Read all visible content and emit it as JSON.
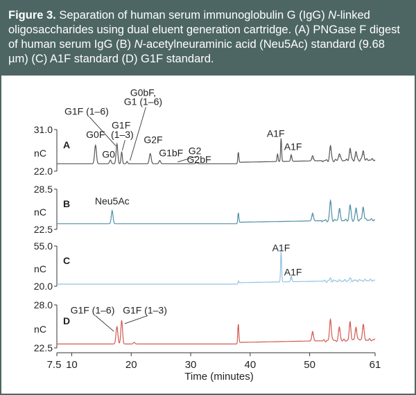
{
  "caption": {
    "label": "Figure 3.",
    "part1": "Separation of human serum immunoglobulin G (IgG) ",
    "italic1": "N",
    "part2": "-linked oligosaccharides using dual eluent generation cartridge. (A) PNGase F digest of human serum IgG (B) ",
    "italic2": "N",
    "part3": "-acetylneuraminic acid (Neu5Ac) standard (9.68 µm) (C) A1F standard (D) G1F standard."
  },
  "chart_data": {
    "type": "line",
    "xlabel": "Time (minutes)",
    "xlim": [
      7.5,
      61
    ],
    "xticks": [
      7.5,
      10,
      20,
      30,
      40,
      50,
      61
    ],
    "xtick_labels": [
      "7.5",
      "10",
      "20",
      "30",
      "40",
      "50",
      "61"
    ],
    "ylabel": "nC",
    "panels": [
      {
        "id": "A",
        "label": "A",
        "ylim": [
          22.0,
          31.0
        ],
        "ytick_labels": [
          "31.0",
          "22.0"
        ],
        "color": "#555555",
        "baseline": 23.6,
        "peaks": [
          {
            "x": 14.0,
            "y": 27.6,
            "w": 0.22
          },
          {
            "x": 16.5,
            "y": 24.4,
            "w": 0.2
          },
          {
            "x": 17.6,
            "y": 27.9,
            "w": 0.2
          },
          {
            "x": 18.4,
            "y": 26.2,
            "w": 0.15
          },
          {
            "x": 19.3,
            "y": 24.1,
            "w": 0.15
          },
          {
            "x": 23.2,
            "y": 25.8,
            "w": 0.22
          },
          {
            "x": 24.8,
            "y": 24.3,
            "w": 0.2
          },
          {
            "x": 31.0,
            "y": 23.8,
            "w": 0.25
          },
          {
            "x": 38.0,
            "y": 26.0,
            "w": 0.12
          },
          {
            "x": 44.6,
            "y": 25.3,
            "w": 0.12
          },
          {
            "x": 45.2,
            "y": 28.6,
            "w": 0.12
          },
          {
            "x": 46.9,
            "y": 25.0,
            "w": 0.15
          },
          {
            "x": 50.5,
            "y": 24.7,
            "w": 0.2
          },
          {
            "x": 53.5,
            "y": 26.7,
            "w": 0.2
          },
          {
            "x": 55.0,
            "y": 25.2,
            "w": 0.2
          },
          {
            "x": 56.8,
            "y": 26.1,
            "w": 0.2
          },
          {
            "x": 57.8,
            "y": 25.3,
            "w": 0.2
          },
          {
            "x": 59.0,
            "y": 25.6,
            "w": 0.2
          }
        ],
        "annotations": [
          {
            "text": "G1F (1–6)",
            "x": 12.5,
            "y": 34.2,
            "lx": 17.4,
            "ly": 27.5
          },
          {
            "text": "G0F",
            "x": 14.0,
            "y": 29.2
          },
          {
            "text": "G1F",
            "x": 18.3,
            "y": 31.2
          },
          {
            "text": "(1–3)",
            "x": 18.5,
            "y": 29.2,
            "lx": 18.5,
            "ly": 26.5
          },
          {
            "text": "G0",
            "x": 16.2,
            "y": 24.9
          },
          {
            "text": "G0bF,",
            "x": 22.0,
            "y": 38.3
          },
          {
            "text": "G1 (1–6)",
            "x": 22.0,
            "y": 36.3,
            "lx": 19.8,
            "ly": 24.3
          },
          {
            "text": "G2F",
            "x": 23.7,
            "y": 28.1
          },
          {
            "text": "G1bF",
            "x": 26.7,
            "y": 25.2
          },
          {
            "text": "G2",
            "x": 30.7,
            "y": 25.7,
            "lx": 27.8,
            "ly": 24.0
          },
          {
            "text": "G2bF",
            "x": 31.4,
            "y": 23.8
          },
          {
            "text": "A1F",
            "x": 44.3,
            "y": 29.4
          },
          {
            "text": "A1F",
            "x": 47.2,
            "y": 26.6
          }
        ]
      },
      {
        "id": "B",
        "label": "B",
        "ylim": [
          22.5,
          28.5
        ],
        "ytick_labels": [
          "28.5",
          "22.5"
        ],
        "color": "#4f8ea6",
        "baseline": 23.35,
        "peaks": [
          {
            "x": 16.8,
            "y": 25.3,
            "w": 0.2
          },
          {
            "x": 38.0,
            "y": 24.9,
            "w": 0.12
          },
          {
            "x": 50.5,
            "y": 24.5,
            "w": 0.2
          },
          {
            "x": 53.5,
            "y": 26.3,
            "w": 0.2
          },
          {
            "x": 55.0,
            "y": 25.1,
            "w": 0.2
          },
          {
            "x": 56.8,
            "y": 25.6,
            "w": 0.2
          },
          {
            "x": 57.8,
            "y": 25.1,
            "w": 0.2
          },
          {
            "x": 59.0,
            "y": 25.3,
            "w": 0.2
          }
        ],
        "annotations": [
          {
            "text": "Neu5Ac",
            "x": 16.8,
            "y": 26.2
          }
        ]
      },
      {
        "id": "C",
        "label": "C",
        "ylim": [
          20.0,
          55.0
        ],
        "ytick_labels": [
          "55.0",
          "20.0"
        ],
        "color": "#8fc2e2",
        "baseline": 21.8,
        "peaks": [
          {
            "x": 38.0,
            "y": 23.5,
            "w": 0.12
          },
          {
            "x": 45.2,
            "y": 48.0,
            "w": 0.12
          },
          {
            "x": 46.9,
            "y": 26.5,
            "w": 0.15
          },
          {
            "x": 53.5,
            "y": 24.0,
            "w": 0.2
          },
          {
            "x": 56.8,
            "y": 23.5,
            "w": 0.2
          }
        ],
        "annotations": [
          {
            "text": "A1F",
            "x": 45.2,
            "y": 50.5
          },
          {
            "text": "A1F",
            "x": 47.2,
            "y": 29.5
          }
        ]
      },
      {
        "id": "D",
        "label": "D",
        "ylim": [
          22.5,
          28.0
        ],
        "ytick_labels": [
          "28.0",
          "22.5"
        ],
        "color": "#d05a50",
        "baseline": 23.0,
        "peaks": [
          {
            "x": 17.6,
            "y": 25.2,
            "w": 0.22
          },
          {
            "x": 18.4,
            "y": 26.0,
            "w": 0.2
          },
          {
            "x": 20.5,
            "y": 23.2,
            "w": 0.2
          },
          {
            "x": 38.0,
            "y": 25.5,
            "w": 0.12
          },
          {
            "x": 50.5,
            "y": 24.2,
            "w": 0.2
          },
          {
            "x": 53.5,
            "y": 25.8,
            "w": 0.2
          },
          {
            "x": 55.0,
            "y": 24.7,
            "w": 0.2
          },
          {
            "x": 56.8,
            "y": 25.3,
            "w": 0.2
          },
          {
            "x": 57.8,
            "y": 24.7,
            "w": 0.2
          },
          {
            "x": 59.0,
            "y": 25.0,
            "w": 0.2
          }
        ],
        "annotations": [
          {
            "text": "G1F (1–6)",
            "x": 13.5,
            "y": 26.9,
            "lx": 17.1,
            "ly": 24.6
          },
          {
            "text": "G1F (1–3)",
            "x": 22.3,
            "y": 26.9,
            "lx": 18.9,
            "ly": 25.6
          }
        ]
      }
    ]
  }
}
